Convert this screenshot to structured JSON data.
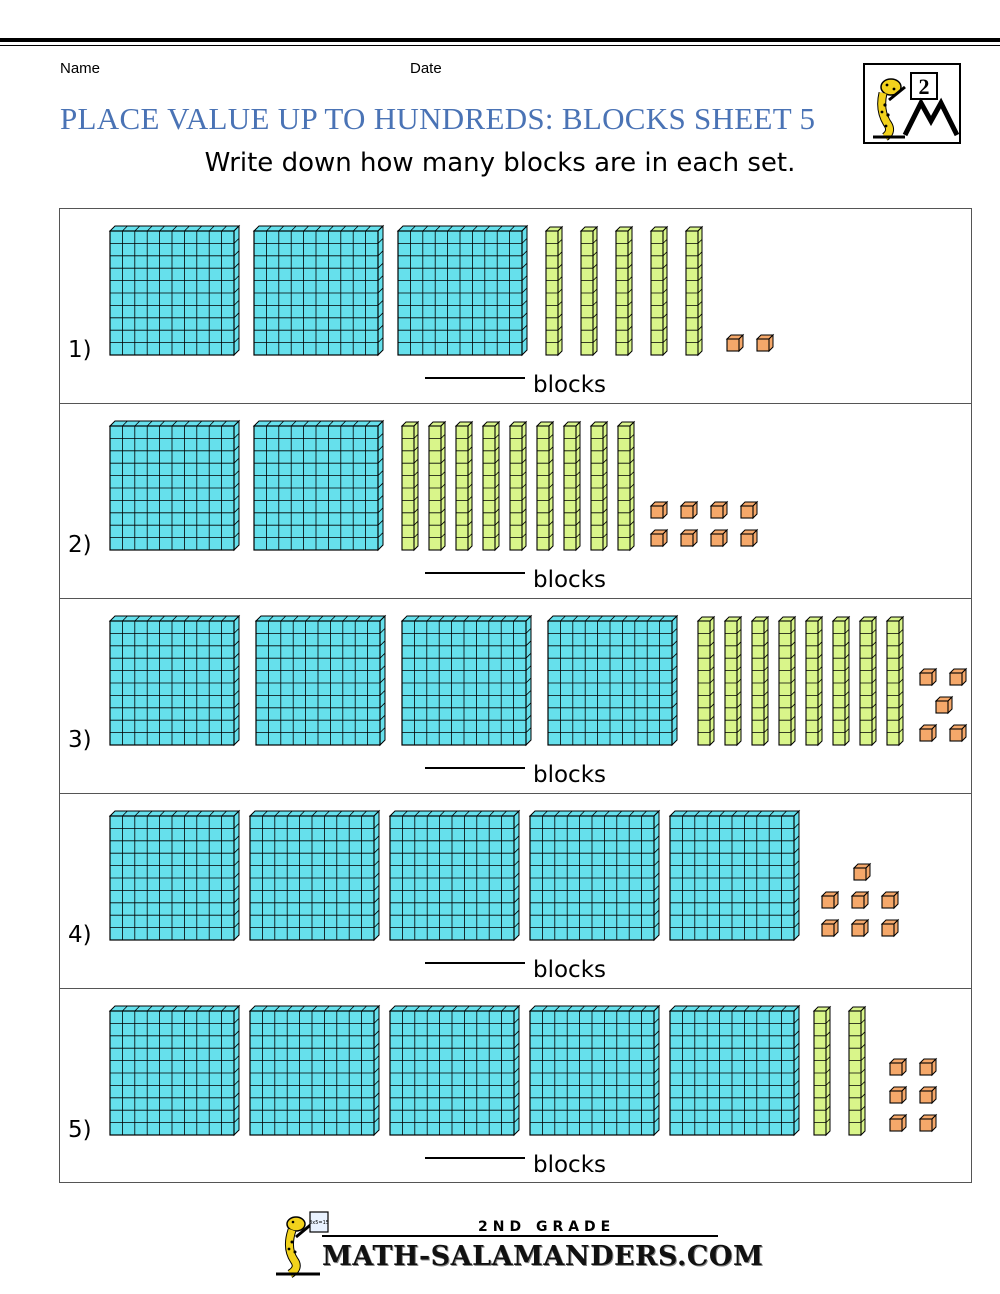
{
  "header": {
    "name_label": "Name",
    "date_label": "Date",
    "title": "PLACE VALUE UP TO HUNDREDS: BLOCKS SHEET 5",
    "instruction": "Write down how many blocks are in each set.",
    "logo_number": "2"
  },
  "colors": {
    "title": "#4a73b5",
    "hundreds": "#66e0ec",
    "tens": "#d9f58a",
    "ones": "#f5a86a"
  },
  "problems": [
    {
      "number": "1)",
      "hundreds": 3,
      "tens": 5,
      "ones": 2,
      "answer_suffix": "blocks"
    },
    {
      "number": "2)",
      "hundreds": 2,
      "tens": 9,
      "ones": 8,
      "answer_suffix": "blocks"
    },
    {
      "number": "3)",
      "hundreds": 4,
      "tens": 8,
      "ones": 5,
      "answer_suffix": "blocks"
    },
    {
      "number": "4)",
      "hundreds": 5,
      "tens": 0,
      "ones": 7,
      "answer_suffix": "blocks"
    },
    {
      "number": "5)",
      "hundreds": 5,
      "tens": 2,
      "ones": 6,
      "answer_suffix": "blocks"
    }
  ],
  "footer": {
    "grade_label": "2ND GRADE",
    "site_name": "MATH-SALAMANDERS.COM",
    "board_text": "3x5=15"
  }
}
